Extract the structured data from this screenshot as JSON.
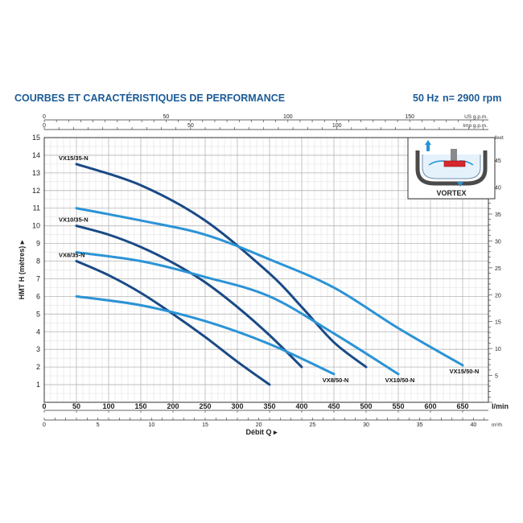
{
  "header": {
    "title": "COURBES ET CARACTÉRISTIQUES DE PERFORMANCE",
    "frequency": "50 Hz",
    "speed": "n= 2900 rpm"
  },
  "colors": {
    "series_dark": "#1a4a86",
    "series_light": "#2b93d6",
    "grid": "#c9c9c9",
    "axis": "#333333",
    "title": "#1b5b96"
  },
  "inset": {
    "label": "VORTEX",
    "icon": "pump-impeller-icon"
  },
  "chart_data": {
    "type": "line",
    "xlabel": "Débit Q",
    "ylabel": "HMT H (mètres)",
    "x_unit": "l/min",
    "xlim": [
      0,
      690
    ],
    "ylim": [
      0,
      15
    ],
    "x_ticks": [
      0,
      50,
      100,
      150,
      200,
      250,
      300,
      350,
      400,
      450,
      500,
      550,
      600,
      650
    ],
    "y_ticks": [
      1,
      2,
      3,
      4,
      5,
      6,
      7,
      8,
      9,
      10,
      11,
      12,
      13,
      14,
      15
    ],
    "secondary_axes": {
      "us_gpm": {
        "label": "US g.p.m.",
        "ticks": [
          0,
          50,
          100,
          150
        ]
      },
      "imp_gpm": {
        "label": "Imp g.p.m.",
        "ticks": [
          0,
          50,
          100
        ]
      },
      "m3h": {
        "label": "m³/h",
        "ticks": [
          0,
          5,
          10,
          15,
          20,
          25,
          30,
          35,
          40
        ]
      },
      "feet": {
        "label": "feet",
        "ticks": [
          5,
          10,
          15,
          20,
          25,
          30,
          35,
          40,
          45
        ]
      }
    },
    "series": [
      {
        "name": "VX15/35-N",
        "color": "dark",
        "label_pos": "start",
        "x": [
          50,
          150,
          250,
          350,
          400,
          450,
          500
        ],
        "y": [
          13.5,
          12.3,
          10.3,
          7.3,
          5.4,
          3.4,
          2.0
        ]
      },
      {
        "name": "VX10/35-N",
        "color": "dark",
        "label_pos": "start",
        "x": [
          50,
          100,
          150,
          200,
          250,
          300,
          350,
          400
        ],
        "y": [
          10.0,
          9.5,
          8.8,
          7.9,
          6.8,
          5.4,
          3.8,
          2.0
        ]
      },
      {
        "name": "VX8/35-N",
        "color": "dark",
        "label_pos": "start",
        "x": [
          50,
          100,
          150,
          200,
          250,
          300,
          350
        ],
        "y": [
          8.0,
          7.2,
          6.2,
          5.0,
          3.7,
          2.3,
          1.0
        ]
      },
      {
        "name": "VX15/50-N",
        "color": "light",
        "label_pos": "end",
        "x": [
          50,
          150,
          250,
          350,
          450,
          550,
          650
        ],
        "y": [
          11.0,
          10.3,
          9.5,
          8.1,
          6.5,
          4.2,
          2.1
        ]
      },
      {
        "name": "VX10/50-N",
        "color": "light",
        "label_pos": "end",
        "x": [
          50,
          150,
          250,
          350,
          450,
          550
        ],
        "y": [
          8.5,
          8.0,
          7.1,
          6.0,
          3.9,
          1.6
        ]
      },
      {
        "name": "VX8/50-N",
        "color": "light",
        "label_pos": "end",
        "x": [
          50,
          150,
          250,
          350,
          450
        ],
        "y": [
          6.0,
          5.5,
          4.6,
          3.3,
          1.6
        ]
      }
    ]
  }
}
